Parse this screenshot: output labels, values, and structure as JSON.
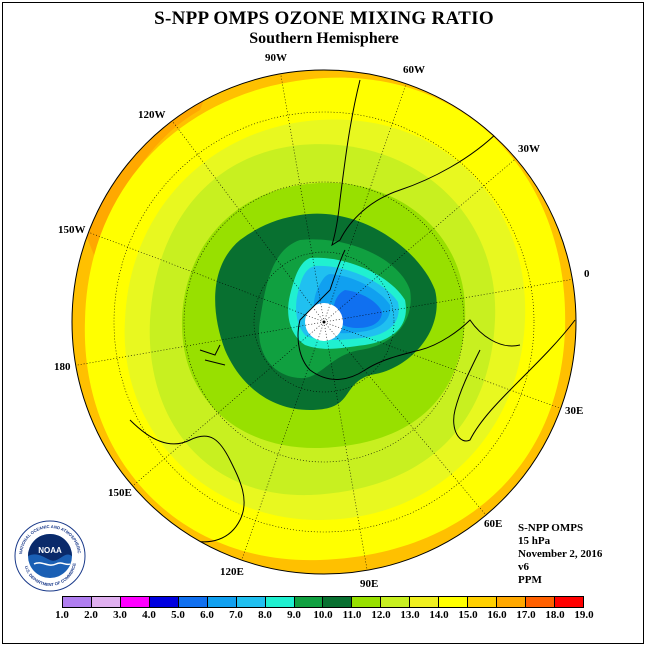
{
  "title": "S-NPP OMPS OZONE MIXING RATIO",
  "subtitle": "Southern Hemisphere",
  "longitude_labels": [
    "90W",
    "60W",
    "30W",
    "0",
    "30E",
    "60E",
    "90E",
    "120E",
    "150E",
    "180",
    "150W",
    "120W"
  ],
  "info": {
    "instrument": "S-NPP OMPS",
    "level": "15 hPa",
    "date": "November 2, 2016",
    "version": "v6",
    "units": "PPM"
  },
  "logo": {
    "text": "NOAA",
    "ring_text": "NATIONAL OCEANIC AND ATMOSPHERIC ADMINISTRATION",
    "ring_text_bottom": "U.S. DEPARTMENT OF COMMERCE"
  },
  "colorbar": {
    "ticks": [
      "1.0",
      "2.0",
      "3.0",
      "4.0",
      "5.0",
      "6.0",
      "7.0",
      "8.0",
      "9.0",
      "10.0",
      "11.0",
      "12.0",
      "13.0",
      "14.0",
      "15.0",
      "16.0",
      "17.0",
      "18.0",
      "19.0"
    ],
    "colors": [
      "#b07ef0",
      "#e0b0f0",
      "#ff00ff",
      "#0000e0",
      "#1070f0",
      "#10a0f0",
      "#20c0f0",
      "#20f0d0",
      "#10a040",
      "#087030",
      "#98e000",
      "#c8f020",
      "#f0f020",
      "#ffff00",
      "#ffd000",
      "#ffa800",
      "#ff6000",
      "#ff0000",
      "#805030"
    ]
  }
}
